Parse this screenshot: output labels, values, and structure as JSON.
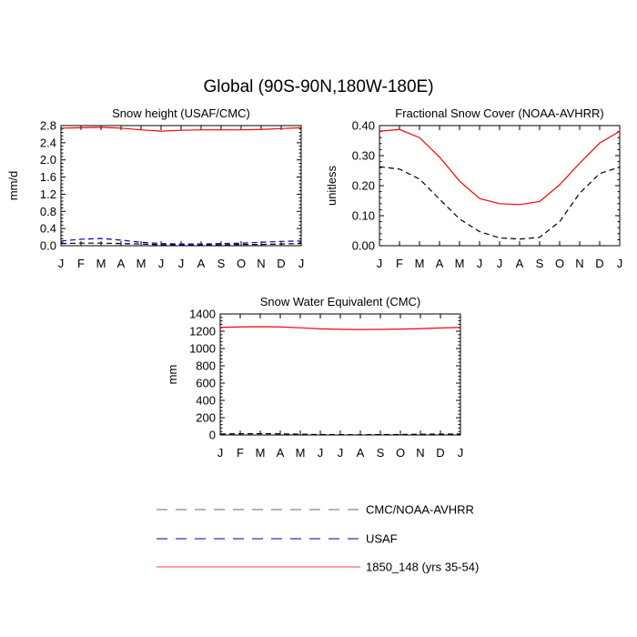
{
  "page": {
    "title": "Global (90S-90N,180W-180E)"
  },
  "chart_data": [
    {
      "type": "line",
      "title": "Snow height (USAF/CMC)",
      "xlabel": "",
      "ylabel": "mm/d",
      "categories": [
        "J",
        "F",
        "M",
        "A",
        "M",
        "J",
        "J",
        "A",
        "S",
        "O",
        "N",
        "D",
        "J"
      ],
      "ylim": [
        0,
        2.8
      ],
      "yticks": [
        "0.0",
        "0.4",
        "0.8",
        "1.2",
        "1.6",
        "2.0",
        "2.4",
        "2.8"
      ],
      "series": [
        {
          "name": "1850_148 (yrs 35-54)",
          "color": "#ff0000",
          "dash": "solid",
          "values": [
            2.74,
            2.75,
            2.76,
            2.74,
            2.7,
            2.67,
            2.69,
            2.7,
            2.7,
            2.7,
            2.71,
            2.73,
            2.75
          ]
        },
        {
          "name": "USAF",
          "color": "#0000cc",
          "dash": "dashed",
          "values": [
            0.11,
            0.15,
            0.17,
            0.13,
            0.08,
            0.05,
            0.04,
            0.04,
            0.05,
            0.06,
            0.08,
            0.1,
            0.11
          ]
        },
        {
          "name": "CMC/NOAA-AVHRR",
          "color": "#000000",
          "dash": "dashed",
          "values": [
            0.05,
            0.06,
            0.06,
            0.05,
            0.04,
            0.02,
            0.02,
            0.02,
            0.02,
            0.03,
            0.03,
            0.04,
            0.05
          ]
        }
      ]
    },
    {
      "type": "line",
      "title": "Fractional Snow Cover (NOAA-AVHRR)",
      "xlabel": "",
      "ylabel": "unitless",
      "categories": [
        "J",
        "F",
        "M",
        "A",
        "M",
        "J",
        "J",
        "A",
        "S",
        "O",
        "N",
        "D",
        "J"
      ],
      "ylim": [
        0,
        0.4
      ],
      "yticks": [
        "0.00",
        "0.10",
        "0.20",
        "0.30",
        "0.40"
      ],
      "series": [
        {
          "name": "1850_148 (yrs 35-54)",
          "color": "#ff0000",
          "dash": "solid",
          "values": [
            0.381,
            0.387,
            0.36,
            0.295,
            0.215,
            0.157,
            0.14,
            0.137,
            0.147,
            0.203,
            0.275,
            0.342,
            0.381
          ]
        },
        {
          "name": "CMC/NOAA-AVHRR",
          "color": "#000000",
          "dash": "dashed",
          "values": [
            0.263,
            0.255,
            0.222,
            0.155,
            0.089,
            0.047,
            0.026,
            0.022,
            0.028,
            0.08,
            0.175,
            0.24,
            0.262
          ]
        }
      ]
    },
    {
      "type": "line",
      "title": "Snow Water Equivalent (CMC)",
      "xlabel": "",
      "ylabel": "mm",
      "categories": [
        "J",
        "F",
        "M",
        "A",
        "M",
        "J",
        "J",
        "A",
        "S",
        "O",
        "N",
        "D",
        "J"
      ],
      "ylim": [
        0,
        1400
      ],
      "yticks": [
        "0",
        "200",
        "400",
        "600",
        "800",
        "1000",
        "1200",
        "1400"
      ],
      "series": [
        {
          "name": "1850_148 (yrs 35-54)",
          "color": "#ff0000",
          "dash": "solid",
          "values": [
            1245,
            1250,
            1253,
            1250,
            1240,
            1228,
            1222,
            1220,
            1221,
            1225,
            1230,
            1238,
            1245
          ]
        },
        {
          "name": "CMC/NOAA-AVHRR",
          "color": "#000000",
          "dash": "dashed",
          "values": [
            12,
            14,
            15,
            13,
            9,
            5,
            4,
            3,
            4,
            6,
            8,
            10,
            12
          ]
        }
      ]
    }
  ],
  "legend": [
    {
      "label": "CMC/NOAA-AVHRR",
      "color": "#888888",
      "dash": "dashed"
    },
    {
      "label": "USAF",
      "color": "#3333aa",
      "dash": "dashed"
    },
    {
      "label": "1850_148 (yrs 35-54)",
      "color": "#ff6666",
      "dash": "solid"
    }
  ]
}
